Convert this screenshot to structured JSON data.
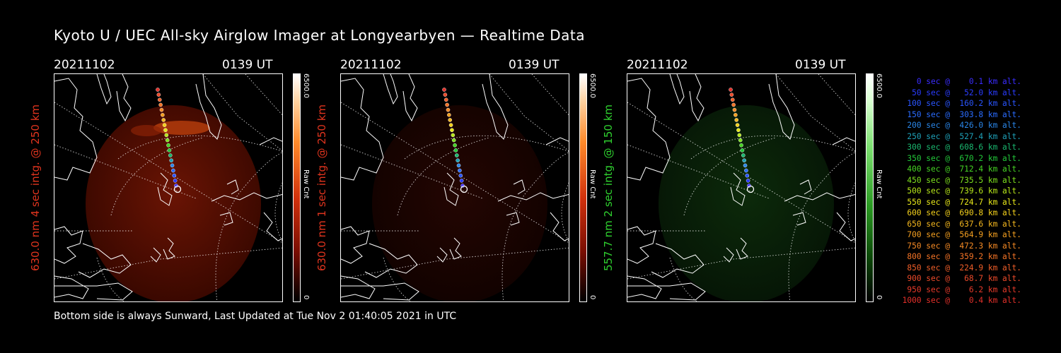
{
  "title": "Kyoto U / UEC All-sky Airglow Imager at Longyearbyen — Realtime Data",
  "footer": "Bottom side is always Sunward, Last Updated at Tue Nov  2 01:40:05 2021 in UTC",
  "colors": {
    "red_label": "#e0341e",
    "green_label": "#2fd12f",
    "background": "#000000"
  },
  "panels": [
    {
      "date": "20211102",
      "time": "0139 UT",
      "side_label": "630.0 nm  4 sec intg. @ 250 km",
      "label_color": "#e0341e",
      "colorbar": {
        "max_label": "6500.0",
        "min_label": "0",
        "unit_label": "Raw Cnt",
        "scheme": "red"
      },
      "glow": "red-bright"
    },
    {
      "date": "20211102",
      "time": "0139 UT",
      "side_label": "630.0 nm  1 sec intg. @ 250 km",
      "label_color": "#e0341e",
      "colorbar": {
        "max_label": "6500.0",
        "min_label": "0",
        "unit_label": "Raw Cnt",
        "scheme": "red"
      },
      "glow": "red-dim"
    },
    {
      "date": "20211102",
      "time": "0139 UT",
      "side_label": "557.7 nm  2 sec intg. @ 150 km",
      "label_color": "#2fd12f",
      "colorbar": {
        "max_label": "6500.0",
        "min_label": "0",
        "unit_label": "Raw Cnt",
        "scheme": "green"
      },
      "glow": "green-dim"
    }
  ],
  "legend": [
    {
      "text": "   0 sec @    0.1 km alt.",
      "color": "#3a2cff"
    },
    {
      "text": "  50 sec @   52.0 km alt.",
      "color": "#2a3cff"
    },
    {
      "text": " 100 sec @  160.2 km alt.",
      "color": "#2a55ff"
    },
    {
      "text": " 150 sec @  303.8 km alt.",
      "color": "#2a6cff"
    },
    {
      "text": " 200 sec @  426.0 km alt.",
      "color": "#2a86e8"
    },
    {
      "text": " 250 sec @  527.4 km alt.",
      "color": "#1ea0b8"
    },
    {
      "text": " 300 sec @  608.6 km alt.",
      "color": "#1ab870"
    },
    {
      "text": " 350 sec @  670.2 km alt.",
      "color": "#22c83a"
    },
    {
      "text": " 400 sec @  712.4 km alt.",
      "color": "#46d424"
    },
    {
      "text": " 450 sec @  735.5 km alt.",
      "color": "#7ee01e"
    },
    {
      "text": " 500 sec @  739.6 km alt.",
      "color": "#b8e81a"
    },
    {
      "text": " 550 sec @  724.7 km alt.",
      "color": "#e8e81a"
    },
    {
      "text": " 600 sec @  690.8 km alt.",
      "color": "#f5d21c"
    },
    {
      "text": " 650 sec @  637.6 km alt.",
      "color": "#f5b81e"
    },
    {
      "text": " 700 sec @  564.9 km alt.",
      "color": "#f5a020"
    },
    {
      "text": " 750 sec @  472.3 km alt.",
      "color": "#f58a24"
    },
    {
      "text": " 800 sec @  359.2 km alt.",
      "color": "#f57426"
    },
    {
      "text": " 850 sec @  224.9 km alt.",
      "color": "#f05e28"
    },
    {
      "text": " 900 sec @   68.7 km alt.",
      "color": "#ec4a2a"
    },
    {
      "text": " 950 sec @    6.2 km alt.",
      "color": "#e83a2a"
    },
    {
      "text": "1000 sec @    0.4 km alt.",
      "color": "#e4302a"
    }
  ]
}
